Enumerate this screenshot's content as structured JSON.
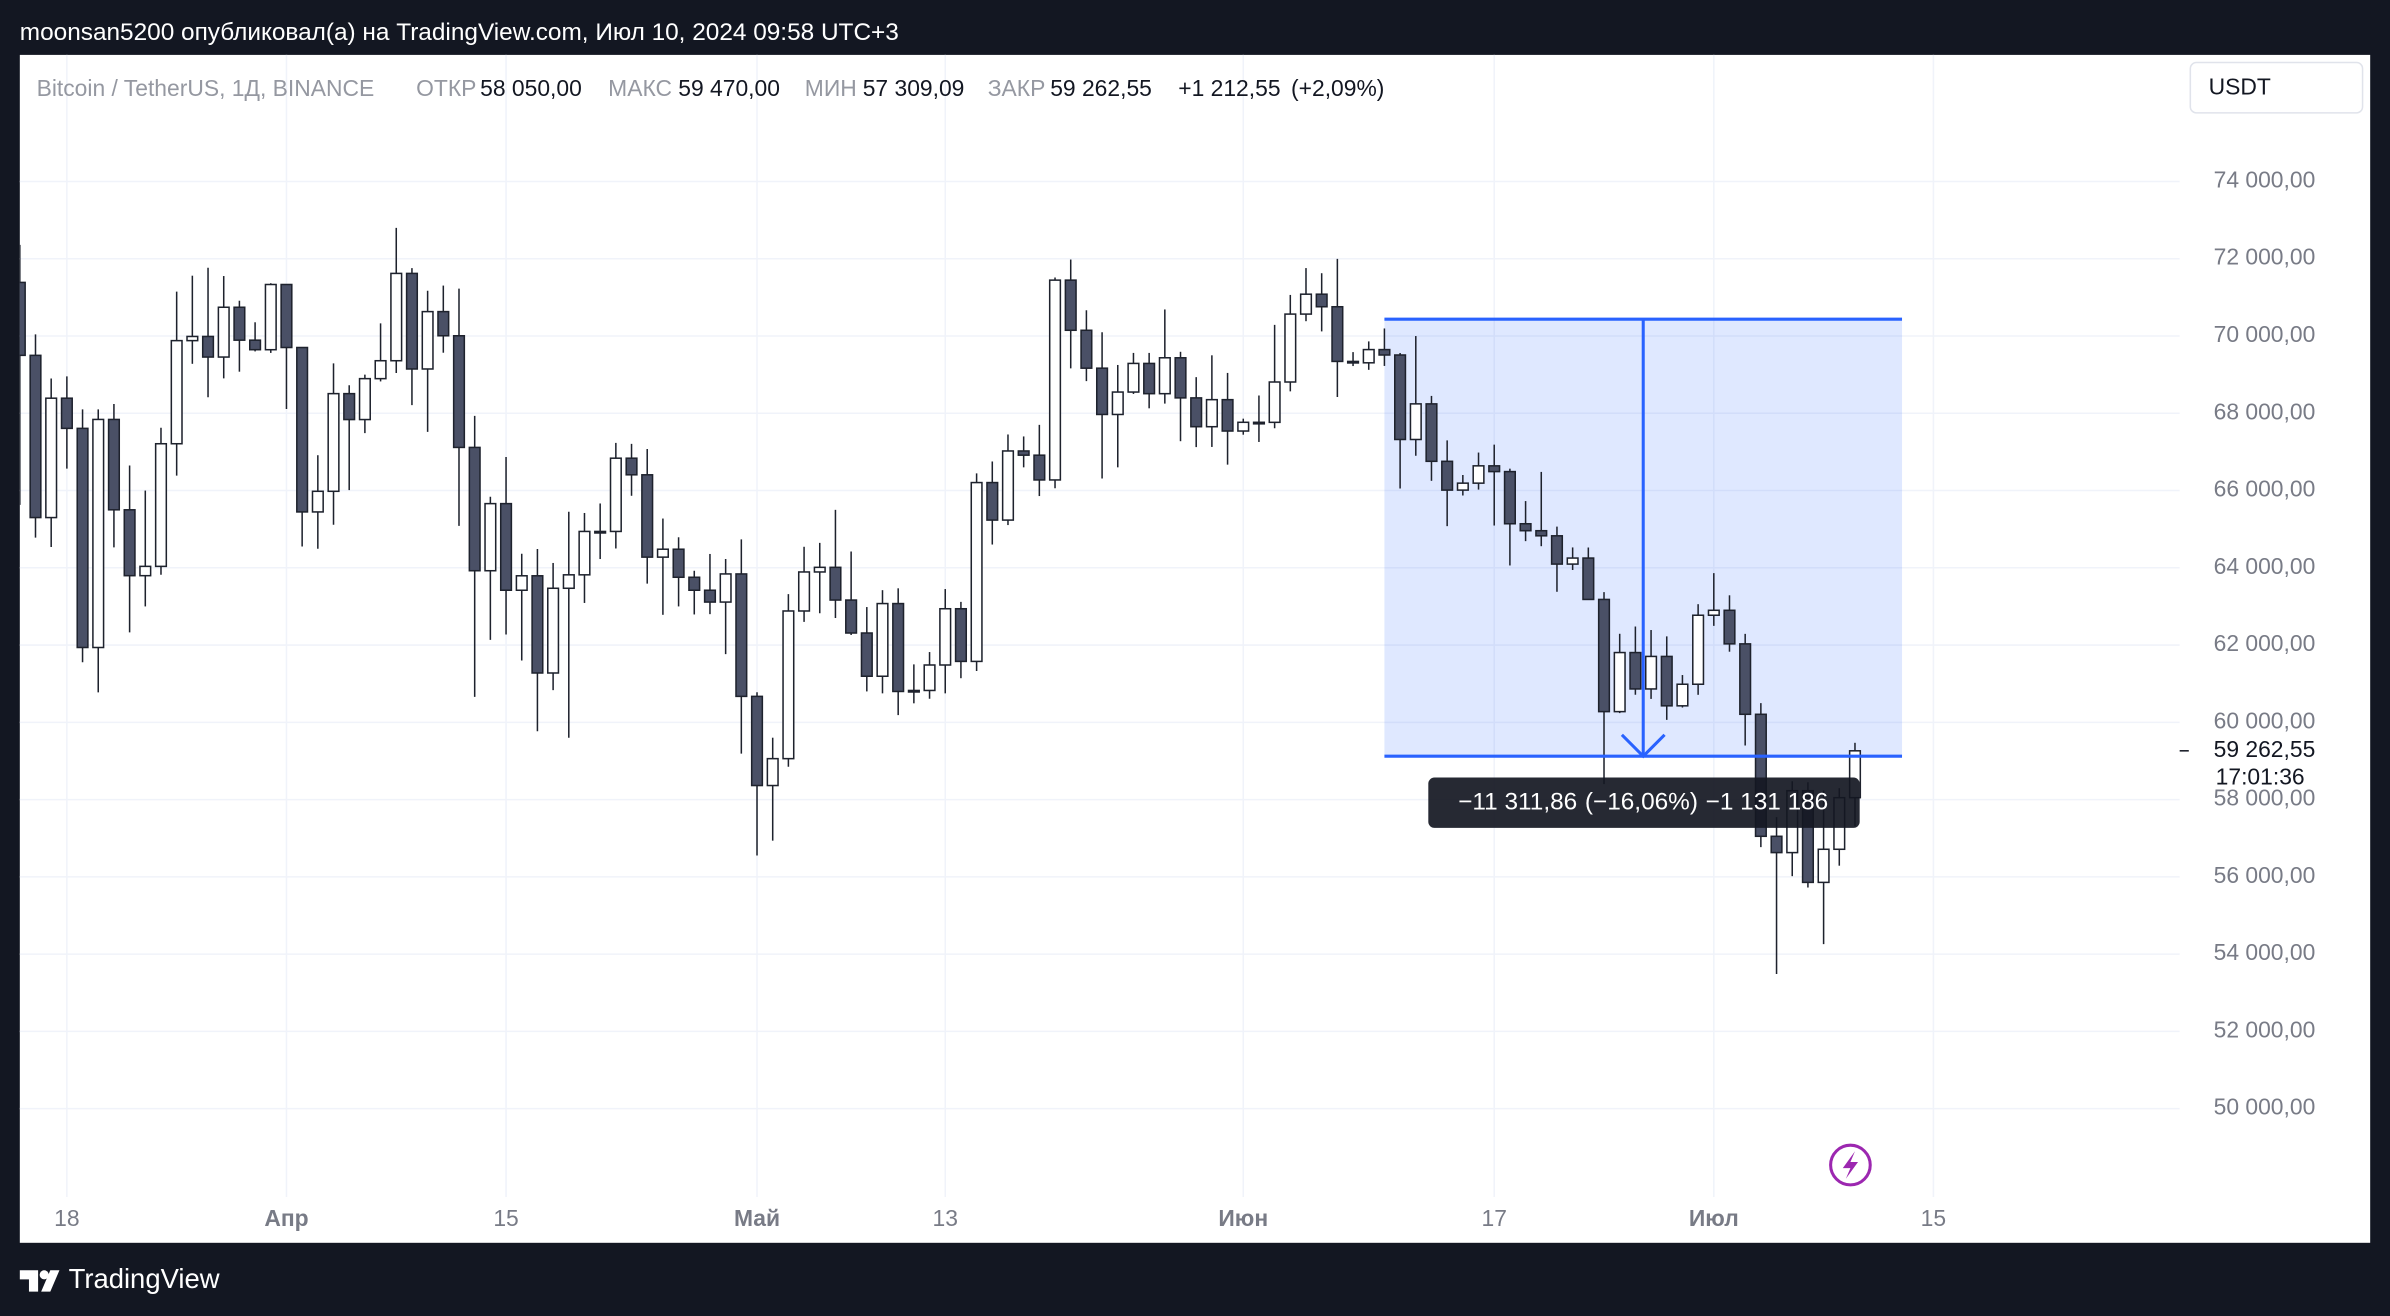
{
  "publisher": "moonsan5200 опубликовал(а) на TradingView.com, Июл 10, 2024 09:58 UTC+3",
  "brand": "TradingView",
  "currency": "USDT",
  "chart_data": {
    "type": "candlestick",
    "symbol": "Bitcoin / TetherUS, 1Д, BINANCE",
    "ohlc_legend": [
      {
        "name": "ОТКР",
        "value": {
          "value": 58050,
          "label": "58 050,00"
        }
      },
      {
        "name": "МАКС",
        "value": {
          "value": 59470,
          "label": "59 470,00"
        }
      },
      {
        "name": "МИН",
        "value": {
          "value": 57309.09,
          "label": "57 309,09"
        }
      },
      {
        "name": "ЗАКР",
        "value": {
          "value": 59262.55,
          "label": "59 262,55"
        }
      }
    ],
    "change": {
      "value": 1212.55,
      "label": "+1 212,55"
    },
    "change_percent": {
      "value": 2.09,
      "label": "(+2,09%)"
    },
    "up_color": "#ffffff",
    "down_color": "#4a5066",
    "outline_color": "#1e222d",
    "open": [
      71387,
      69499,
      65300,
      68390,
      67609,
      61937,
      67840,
      65501,
      63796,
      64037,
      67211,
      69880,
      69988,
      69455,
      70744,
      69892,
      69645,
      71333,
      69702,
      65446,
      65980,
      68508,
      67837,
      68896,
      69360,
      71620,
      69146,
      70631,
      70006,
      67116,
      63924,
      65661,
      63419,
      63793,
      61277,
      63470,
      63818,
      64941,
      64941,
      66837,
      66407,
      64276,
      64481,
      63755,
      63419,
      63113,
      63841,
      60672,
      58364,
      59060,
      62882,
      63892,
      64012,
      63165,
      62312,
      61193,
      63074,
      60799,
      60825,
      61484,
      62940,
      61577,
      66206,
      65235,
      67024,
      66915,
      66274,
      71446,
      70148,
      69167,
      67969,
      68549,
      69290,
      68507,
      69436,
      68398,
      67652,
      68352,
      67540,
      67766,
      67765,
      68809,
      70567,
      71082,
      70757,
      69342,
      69306,
      69648,
      69508,
      67321,
      68243,
      66756,
      66011,
      66191,
      66639,
      66490,
      65140,
      64960,
      64828,
      64096,
      64252,
      63181,
      60277,
      61806,
      60864,
      61706,
      60427,
      60986,
      62772,
      62900,
      62031,
      60208,
      57050,
      56628,
      58230,
      55857,
      56714,
      58050
    ],
    "high": [
      72357,
      70043,
      68900,
      68956,
      68100,
      68100,
      68240,
      66649,
      65999,
      67624,
      71150,
      71561,
      71766,
      71552,
      70913,
      70355,
      71366,
      71342,
      69708,
      66914,
      69291,
      68725,
      69000,
      70327,
      72797,
      71758,
      71172,
      71305,
      71227,
      67931,
      65840,
      66867,
      64365,
      64486,
      64125,
      65450,
      65419,
      65665,
      67233,
      67208,
      67075,
      65275,
      64790,
      63923,
      64358,
      64228,
      64735,
      60780,
      59602,
      63320,
      64544,
      64646,
      65500,
      64422,
      62984,
      63421,
      63469,
      61500,
      61819,
      63450,
      63118,
      66444,
      66752,
      67451,
      67400,
      67700,
      71515,
      71979,
      70666,
      70096,
      69250,
      69562,
      69562,
      70687,
      69591,
      68935,
      69500,
      69044,
      67860,
      68460,
      70288,
      71063,
      71758,
      71625,
      71997,
      69583,
      69860,
      70195,
      69561,
      69999,
      68449,
      67298,
      66402,
      66983,
      67188,
      66566,
      65727,
      66482,
      65066,
      64527,
      64525,
      63369,
      62292,
      62480,
      62389,
      62225,
      61224,
      63058,
      63862,
      63288,
      62290,
      60498,
      57546,
      58475,
      58449,
      58236,
      58296,
      59470
    ],
    "low": [
      65630,
      64780,
      64539,
      66566,
      61555,
      60775,
      64529,
      62330,
      63000,
      63820,
      66385,
      69280,
      68414,
      68903,
      69076,
      69601,
      69562,
      68110,
      64550,
      64493,
      65113,
      66011,
      67486,
      68824,
      69043,
      68210,
      67518,
      69567,
      65086,
      60660,
      62134,
      62275,
      61600,
      59768,
      60833,
      59600,
      63090,
      64227,
      64500,
      65864,
      63589,
      62783,
      63000,
      62792,
      62800,
      61765,
      59191,
      56552,
      56937,
      58849,
      62600,
      62822,
      62700,
      62261,
      60800,
      60750,
      60187,
      60492,
      60610,
      60750,
      61142,
      61330,
      64602,
      65106,
      66600,
      65857,
      66060,
      69162,
      68832,
      66312,
      66600,
      68500,
      68128,
      68250,
      67277,
      67124,
      67128,
      66670,
      67445,
      67257,
      67612,
      68567,
      70383,
      70119,
      68420,
      69222,
      69124,
      69225,
      66051,
      66900,
      66251,
      65078,
      65871,
      66024,
      65094,
      64060,
      64690,
      64559,
      63379,
      63943,
      63178,
      58402,
      60239,
      60714,
      60606,
      60063,
      60383,
      60712,
      62497,
      61828,
      59400,
      56771,
      53485,
      56018,
      55724,
      54260,
      56289,
      57309.09
    ],
    "close": [
      69499,
      65300,
      68390,
      67609,
      61937,
      67840,
      65501,
      63796,
      64037,
      67211,
      69880,
      69988,
      69455,
      70744,
      69892,
      69645,
      71333,
      69702,
      65446,
      65980,
      68508,
      67837,
      68896,
      69360,
      71620,
      69146,
      70631,
      70006,
      67116,
      63924,
      65661,
      63419,
      63793,
      61277,
      63470,
      63818,
      64941,
      64941,
      66837,
      66407,
      64276,
      64481,
      63755,
      63419,
      63113,
      63841,
      60672,
      58364,
      59060,
      62882,
      63892,
      64012,
      63165,
      62312,
      61193,
      63074,
      60799,
      60825,
      61484,
      62940,
      61577,
      66206,
      65235,
      67024,
      66915,
      66274,
      71446,
      70148,
      69167,
      67969,
      68549,
      69290,
      68507,
      69436,
      68398,
      67652,
      68352,
      67540,
      67766,
      67765,
      68809,
      70567,
      71082,
      70757,
      69342,
      69306,
      69648,
      69508,
      67321,
      68243,
      66756,
      66011,
      66191,
      66639,
      66490,
      65140,
      64960,
      64828,
      64096,
      64252,
      63181,
      60277,
      61806,
      60864,
      61706,
      60427,
      60986,
      62772,
      62900,
      62031,
      60208,
      57050,
      56628,
      58230,
      55857,
      56714,
      58050,
      59262.55
    ],
    "xlim": [
      0,
      137.7
    ],
    "xticks": [
      {
        "value": 3,
        "label": "18"
      },
      {
        "value": 17,
        "label": "Апр"
      },
      {
        "value": 31,
        "label": "15"
      },
      {
        "value": 47,
        "label": "Май"
      },
      {
        "value": 59,
        "label": "13"
      },
      {
        "value": 78,
        "label": "Июн"
      },
      {
        "value": 94,
        "label": "17"
      },
      {
        "value": 108,
        "label": "Июл"
      },
      {
        "value": 122,
        "label": "15"
      }
    ],
    "ylim": [
      47712,
      77276
    ],
    "yticks": [
      {
        "value": 50000,
        "label": "50 000,00"
      },
      {
        "value": 52000,
        "label": "52 000,00"
      },
      {
        "value": 54000,
        "label": "54 000,00"
      },
      {
        "value": 56000,
        "label": "56 000,00"
      },
      {
        "value": 58000,
        "label": "58 000,00"
      },
      {
        "value": 60000,
        "label": "60 000,00"
      },
      {
        "value": 62000,
        "label": "62 000,00"
      },
      {
        "value": 64000,
        "label": "64 000,00"
      },
      {
        "value": 66000,
        "label": "66 000,00"
      },
      {
        "value": 68000,
        "label": "68 000,00"
      },
      {
        "value": 70000,
        "label": "70 000,00"
      },
      {
        "value": 72000,
        "label": "72 000,00"
      },
      {
        "value": 74000,
        "label": "74 000,00"
      }
    ],
    "grid": true,
    "last_price": {
      "value": 59262.55,
      "label": "59 262,55"
    },
    "countdown": "17:01:36",
    "measure": {
      "from_index": 87,
      "to_index": 120,
      "from_price": 70435,
      "to_price": 59123.14,
      "color": "#2962ff",
      "change": {
        "value": -11311.86,
        "label": "−11 311,86"
      },
      "percent": {
        "value": -16.06,
        "label": "(−16,06%)"
      },
      "ticks": {
        "value": -1131186,
        "label": "−1 131 186"
      }
    }
  }
}
